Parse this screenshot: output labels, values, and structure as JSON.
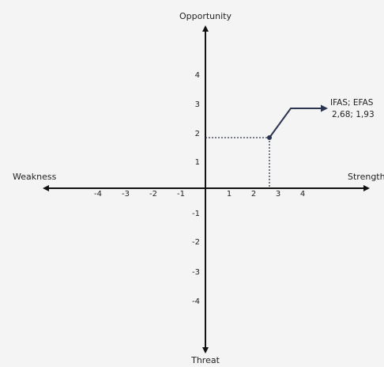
{
  "axes": {
    "top": "Opportunity",
    "bottom": "Threat",
    "left": "Weakness",
    "right": "Strength"
  },
  "x_ticks": [
    "-4",
    "-3",
    "-2",
    "-1",
    "1",
    "2",
    "3",
    "4"
  ],
  "y_ticks": [
    "4",
    "3",
    "2",
    "1",
    "-1",
    "-2",
    "-3",
    "-4"
  ],
  "point": {
    "label_line1": "IFAS; EFAS",
    "label_line2": "2,68; 1,93",
    "x": 2.68,
    "y": 1.93
  },
  "colors": {
    "axis": "#111111",
    "point_line": "#2b3550",
    "guide": "#2b3550",
    "background": "#f4f4f4"
  }
}
